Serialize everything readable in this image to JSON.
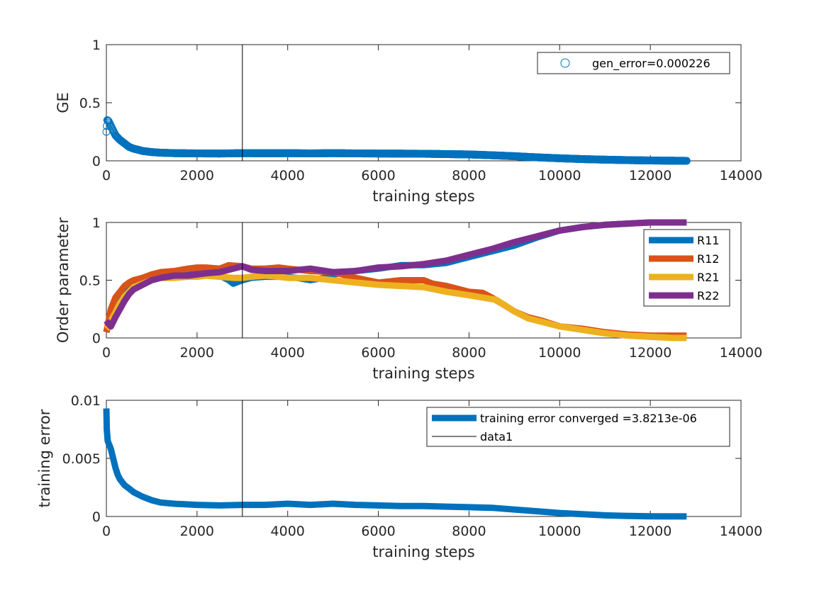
{
  "chart_data": [
    {
      "type": "scatter",
      "ylabel": "GE",
      "xlabel": "training steps",
      "xlim": [
        0,
        14000
      ],
      "ylim": [
        0,
        1
      ],
      "xticks": [
        0,
        2000,
        4000,
        6000,
        8000,
        10000,
        12000,
        14000
      ],
      "yticks": [
        0,
        0.5,
        1
      ],
      "xtick_labels": [
        "0",
        "2000",
        "4000",
        "6000",
        "8000",
        "10000",
        "12000",
        "14000"
      ],
      "ytick_labels": [
        "0",
        "0.5",
        "1"
      ],
      "vline_x": 3000,
      "legend_position": "top-right",
      "series": [
        {
          "name": "gen_error=0.000226",
          "marker": "circle",
          "color": "#0072BD",
          "x": [
            0,
            20,
            50,
            100,
            150,
            200,
            300,
            400,
            500,
            600,
            700,
            800,
            1000,
            1200,
            1500,
            2000,
            2500,
            3000,
            3500,
            4000,
            4500,
            5000,
            5500,
            6000,
            6500,
            7000,
            7500,
            8000,
            8500,
            9000,
            9500,
            10000,
            10500,
            11000,
            11500,
            12000,
            12500,
            12800
          ],
          "y": [
            0.25,
            0.35,
            0.34,
            0.3,
            0.26,
            0.22,
            0.18,
            0.15,
            0.12,
            0.105,
            0.095,
            0.085,
            0.075,
            0.07,
            0.066,
            0.064,
            0.063,
            0.066,
            0.065,
            0.066,
            0.064,
            0.066,
            0.064,
            0.063,
            0.062,
            0.061,
            0.058,
            0.055,
            0.048,
            0.04,
            0.03,
            0.022,
            0.015,
            0.01,
            0.006,
            0.003,
            0.001,
            0.0002
          ]
        }
      ]
    },
    {
      "type": "line",
      "ylabel": "Order parameter",
      "xlabel": "training steps",
      "xlim": [
        0,
        14000
      ],
      "ylim": [
        0,
        1
      ],
      "xticks": [
        0,
        2000,
        4000,
        6000,
        8000,
        10000,
        12000,
        14000
      ],
      "yticks": [
        0,
        0.5,
        1
      ],
      "xtick_labels": [
        "0",
        "2000",
        "4000",
        "6000",
        "8000",
        "10000",
        "12000",
        "14000"
      ],
      "ytick_labels": [
        "0",
        "0.5",
        "1"
      ],
      "vline_x": 3000,
      "legend_position": "top-right",
      "series": [
        {
          "name": "R11",
          "color": "#0072BD",
          "x": [
            0,
            50,
            100,
            200,
            300,
            400,
            500,
            600,
            800,
            1000,
            1200,
            1500,
            1800,
            2000,
            2200,
            2500,
            2700,
            2800,
            3000,
            3200,
            3500,
            3800,
            4000,
            4200,
            4500,
            4800,
            5000,
            5500,
            6000,
            6500,
            7000,
            7500,
            8000,
            8500,
            9000,
            9500,
            10000,
            10500,
            11000,
            11500,
            12000,
            12500,
            12800
          ],
          "y": [
            0.05,
            0.12,
            0.2,
            0.3,
            0.38,
            0.43,
            0.46,
            0.49,
            0.52,
            0.54,
            0.56,
            0.57,
            0.57,
            0.56,
            0.55,
            0.54,
            0.5,
            0.47,
            0.5,
            0.52,
            0.53,
            0.53,
            0.53,
            0.52,
            0.5,
            0.52,
            0.55,
            0.58,
            0.6,
            0.63,
            0.63,
            0.65,
            0.7,
            0.75,
            0.8,
            0.87,
            0.93,
            0.96,
            0.98,
            0.99,
            1.0,
            1.0,
            1.0
          ]
        },
        {
          "name": "R12",
          "color": "#D95319",
          "x": [
            0,
            50,
            100,
            200,
            300,
            400,
            500,
            600,
            800,
            1000,
            1200,
            1500,
            1800,
            2000,
            2200,
            2500,
            2700,
            3000,
            3200,
            3500,
            3800,
            4000,
            4500,
            5000,
            5500,
            6000,
            6500,
            7000,
            7200,
            7500,
            8000,
            8300,
            8500,
            8800,
            9000,
            9300,
            9600,
            10000,
            10500,
            11000,
            11500,
            12000,
            12500,
            12800
          ],
          "y": [
            0.05,
            0.15,
            0.25,
            0.35,
            0.4,
            0.45,
            0.48,
            0.5,
            0.52,
            0.55,
            0.57,
            0.58,
            0.6,
            0.61,
            0.61,
            0.6,
            0.63,
            0.62,
            0.6,
            0.6,
            0.61,
            0.6,
            0.58,
            0.57,
            0.52,
            0.48,
            0.5,
            0.5,
            0.47,
            0.45,
            0.4,
            0.39,
            0.35,
            0.28,
            0.23,
            0.18,
            0.15,
            0.1,
            0.08,
            0.05,
            0.03,
            0.02,
            0.02,
            0.02
          ]
        },
        {
          "name": "R21",
          "color": "#EDB120",
          "x": [
            0,
            50,
            100,
            200,
            300,
            400,
            500,
            600,
            800,
            1000,
            1200,
            1500,
            1800,
            2000,
            2200,
            2500,
            2800,
            3000,
            3200,
            3500,
            3800,
            4000,
            4500,
            5000,
            5500,
            6000,
            6500,
            7000,
            7500,
            8000,
            8300,
            8600,
            9000,
            9300,
            9600,
            10000,
            10500,
            11000,
            11500,
            12000,
            12500,
            12800
          ],
          "y": [
            0.08,
            0.1,
            0.15,
            0.22,
            0.3,
            0.36,
            0.4,
            0.44,
            0.47,
            0.5,
            0.52,
            0.52,
            0.53,
            0.53,
            0.54,
            0.53,
            0.52,
            0.52,
            0.53,
            0.54,
            0.53,
            0.52,
            0.52,
            0.5,
            0.48,
            0.46,
            0.45,
            0.44,
            0.4,
            0.37,
            0.35,
            0.33,
            0.23,
            0.17,
            0.14,
            0.1,
            0.07,
            0.04,
            0.02,
            0.01,
            0.0,
            0.0
          ]
        },
        {
          "name": "R22",
          "color": "#7E2F8E",
          "x": [
            0,
            50,
            100,
            200,
            300,
            400,
            500,
            600,
            800,
            1000,
            1200,
            1500,
            1800,
            2000,
            2200,
            2500,
            2800,
            3000,
            3200,
            3500,
            3800,
            4000,
            4500,
            5000,
            5500,
            6000,
            6500,
            7000,
            7500,
            8000,
            8500,
            9000,
            9500,
            10000,
            10500,
            11000,
            11500,
            12000,
            12500,
            12800
          ],
          "y": [
            0.15,
            0.12,
            0.1,
            0.18,
            0.25,
            0.32,
            0.38,
            0.42,
            0.46,
            0.5,
            0.52,
            0.54,
            0.54,
            0.55,
            0.56,
            0.57,
            0.6,
            0.62,
            0.59,
            0.58,
            0.58,
            0.58,
            0.6,
            0.57,
            0.58,
            0.61,
            0.62,
            0.64,
            0.67,
            0.72,
            0.77,
            0.83,
            0.88,
            0.93,
            0.96,
            0.98,
            0.99,
            1.0,
            1.0,
            1.0
          ]
        }
      ]
    },
    {
      "type": "line",
      "ylabel": "training error",
      "xlabel": "training steps",
      "xlim": [
        0,
        14000
      ],
      "ylim": [
        0,
        0.01
      ],
      "xticks": [
        0,
        2000,
        4000,
        6000,
        8000,
        10000,
        12000,
        14000
      ],
      "yticks": [
        0,
        0.005,
        0.01
      ],
      "xtick_labels": [
        "0",
        "2000",
        "4000",
        "6000",
        "8000",
        "10000",
        "12000",
        "14000"
      ],
      "ytick_labels": [
        "0",
        "0.005",
        "0.01"
      ],
      "vline_x": 3000,
      "legend_position": "top-right",
      "series": [
        {
          "name": "training error converged =3.8213e-06",
          "color": "#0072BD",
          "x": [
            0,
            10,
            30,
            60,
            100,
            150,
            200,
            250,
            300,
            400,
            500,
            600,
            800,
            1000,
            1200,
            1500,
            2000,
            2500,
            3000,
            3500,
            4000,
            4500,
            5000,
            5500,
            6000,
            6500,
            7000,
            7500,
            8000,
            8500,
            9000,
            9500,
            10000,
            10500,
            11000,
            11500,
            12000,
            12500,
            12800
          ],
          "y": [
            0.0093,
            0.0075,
            0.0065,
            0.0062,
            0.0058,
            0.005,
            0.0042,
            0.0036,
            0.0032,
            0.0027,
            0.0024,
            0.0021,
            0.0017,
            0.0014,
            0.0012,
            0.0011,
            0.001,
            0.00095,
            0.001,
            0.001,
            0.0011,
            0.001,
            0.0011,
            0.001,
            0.00095,
            0.0009,
            0.0009,
            0.00085,
            0.0008,
            0.00075,
            0.0006,
            0.00045,
            0.0003,
            0.0002,
            0.0001,
            5e-05,
            2e-05,
            5e-06,
            3.8e-06
          ]
        },
        {
          "name": "data1",
          "color": "#000000",
          "x": [
            3000,
            3000
          ],
          "y": [
            0,
            0.01
          ]
        }
      ]
    }
  ]
}
